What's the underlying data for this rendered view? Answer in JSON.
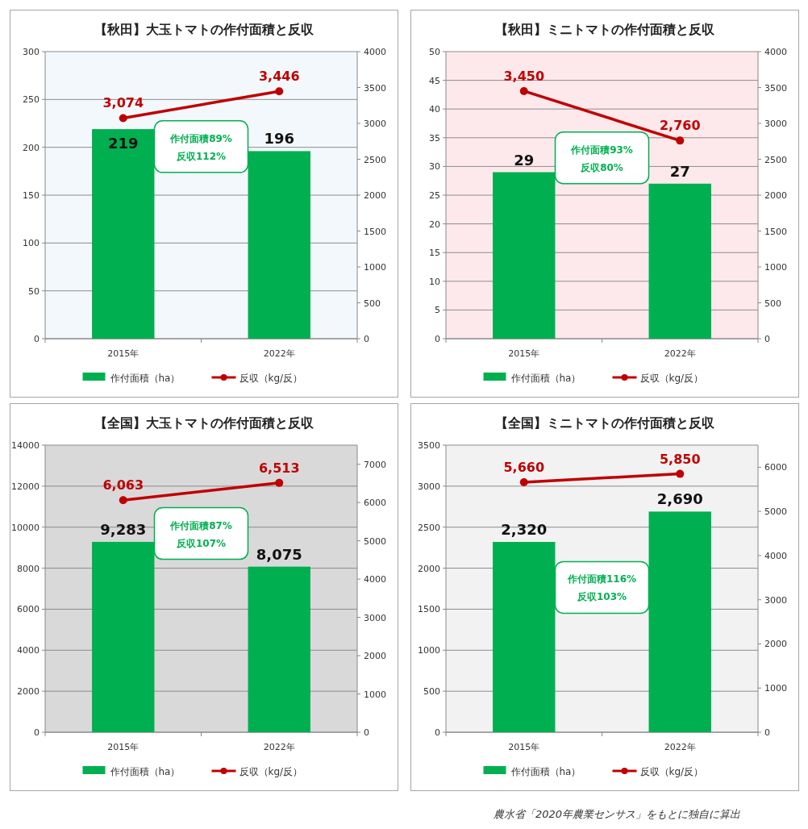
{
  "chart_data": [
    {
      "type": "bar",
      "title": "【秋田】大玉トマトの作付面積と反収",
      "categories": [
        "2015年",
        "2022年"
      ],
      "ylim": [
        0,
        300
      ],
      "yticks": [
        0,
        50,
        100,
        150,
        200,
        250,
        300
      ],
      "y2lim": [
        0,
        4000
      ],
      "y2ticks": [
        0,
        500,
        1000,
        1500,
        2000,
        2500,
        3000,
        3500,
        4000
      ],
      "grid": "y",
      "legend": "bottom",
      "marker": "circle",
      "series": [
        {
          "name": "作付面積（ha）",
          "color": "#00b050",
          "values": [
            219,
            196
          ],
          "value_labels": [
            "219",
            "196"
          ]
        },
        {
          "name": "反収（kg/反）",
          "type": "line",
          "axis": "y2",
          "color": "#c00000",
          "values": [
            3074,
            3446
          ],
          "value_labels": [
            "3,074",
            "3,446"
          ]
        }
      ],
      "annotations": [
        "作付面積89%",
        "反収112%"
      ]
    },
    {
      "type": "bar",
      "title": "【秋田】ミニトマトの作付面積と反収",
      "categories": [
        "2015年",
        "2022年"
      ],
      "ylim": [
        0,
        50
      ],
      "yticks": [
        0,
        5,
        10,
        15,
        20,
        25,
        30,
        35,
        40,
        45,
        50
      ],
      "y2lim": [
        0,
        4000
      ],
      "y2ticks": [
        0,
        500,
        1000,
        1500,
        2000,
        2500,
        3000,
        3500,
        4000
      ],
      "grid": "y",
      "legend": "bottom",
      "marker": "circle",
      "series": [
        {
          "name": "作付面積（ha）",
          "color": "#00b050",
          "values": [
            29,
            27
          ],
          "value_labels": [
            "29",
            "27"
          ]
        },
        {
          "name": "反収（kg/反）",
          "type": "line",
          "axis": "y2",
          "color": "#c00000",
          "values": [
            3450,
            2760
          ],
          "value_labels": [
            "3,450",
            "2,760"
          ]
        }
      ],
      "annotations": [
        "作付面積93%",
        "反収80%"
      ]
    },
    {
      "type": "bar",
      "title": "【全国】大玉トマトの作付面積と反収",
      "categories": [
        "2015年",
        "2022年"
      ],
      "ylim": [
        0,
        14000
      ],
      "yticks": [
        0,
        2000,
        4000,
        6000,
        8000,
        10000,
        12000,
        14000
      ],
      "y2lim": [
        0,
        7500
      ],
      "y2ticks": [
        0,
        1000,
        2000,
        3000,
        4000,
        5000,
        6000,
        7000
      ],
      "grid": "y",
      "legend": "bottom",
      "marker": "circle",
      "series": [
        {
          "name": "作付面積（ha）",
          "color": "#00b050",
          "values": [
            9283,
            8075
          ],
          "value_labels": [
            "9,283",
            "8,075"
          ]
        },
        {
          "name": "反収（kg/反）",
          "type": "line",
          "axis": "y2",
          "color": "#c00000",
          "values": [
            6063,
            6513
          ],
          "value_labels": [
            "6,063",
            "6,513"
          ]
        }
      ],
      "annotations": [
        "作付面積87%",
        "反収107%"
      ]
    },
    {
      "type": "bar",
      "title": "【全国】ミニトマトの作付面積と反収",
      "categories": [
        "2015年",
        "2022年"
      ],
      "ylim": [
        0,
        3500
      ],
      "yticks": [
        0,
        500,
        1000,
        1500,
        2000,
        2500,
        3000,
        3500
      ],
      "y2lim": [
        0,
        6500
      ],
      "y2ticks": [
        0,
        1000,
        2000,
        3000,
        4000,
        5000,
        6000
      ],
      "grid": "y",
      "legend": "bottom",
      "marker": "circle",
      "series": [
        {
          "name": "作付面積（ha）",
          "color": "#00b050",
          "values": [
            2320,
            2690
          ],
          "value_labels": [
            "2,320",
            "2,690"
          ]
        },
        {
          "name": "反収（kg/反）",
          "type": "line",
          "axis": "y2",
          "color": "#c00000",
          "values": [
            5660,
            5850
          ],
          "value_labels": [
            "5,660",
            "5,850"
          ]
        }
      ],
      "annotations": [
        "作付面積116%",
        "反収103%",
        "農水省「2020年農業センサス」をもとに独自に算出"
      ]
    }
  ]
}
